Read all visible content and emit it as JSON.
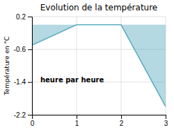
{
  "chart_data": {
    "type": "area",
    "title": "Evolution de la température",
    "xlabel": "heure par heure",
    "ylabel": "Température en °C",
    "x": [
      0,
      1,
      2,
      3
    ],
    "values": [
      -0.5,
      0.0,
      0.0,
      -2.0
    ],
    "color": "#5aaabf",
    "xlim": [
      0,
      3
    ],
    "ylim": [
      -2.2,
      0.2
    ],
    "xticks": [
      0,
      1,
      2,
      3
    ],
    "yticks": [
      0.2,
      -0.6,
      -1.4,
      -2.2
    ],
    "grid": true
  }
}
